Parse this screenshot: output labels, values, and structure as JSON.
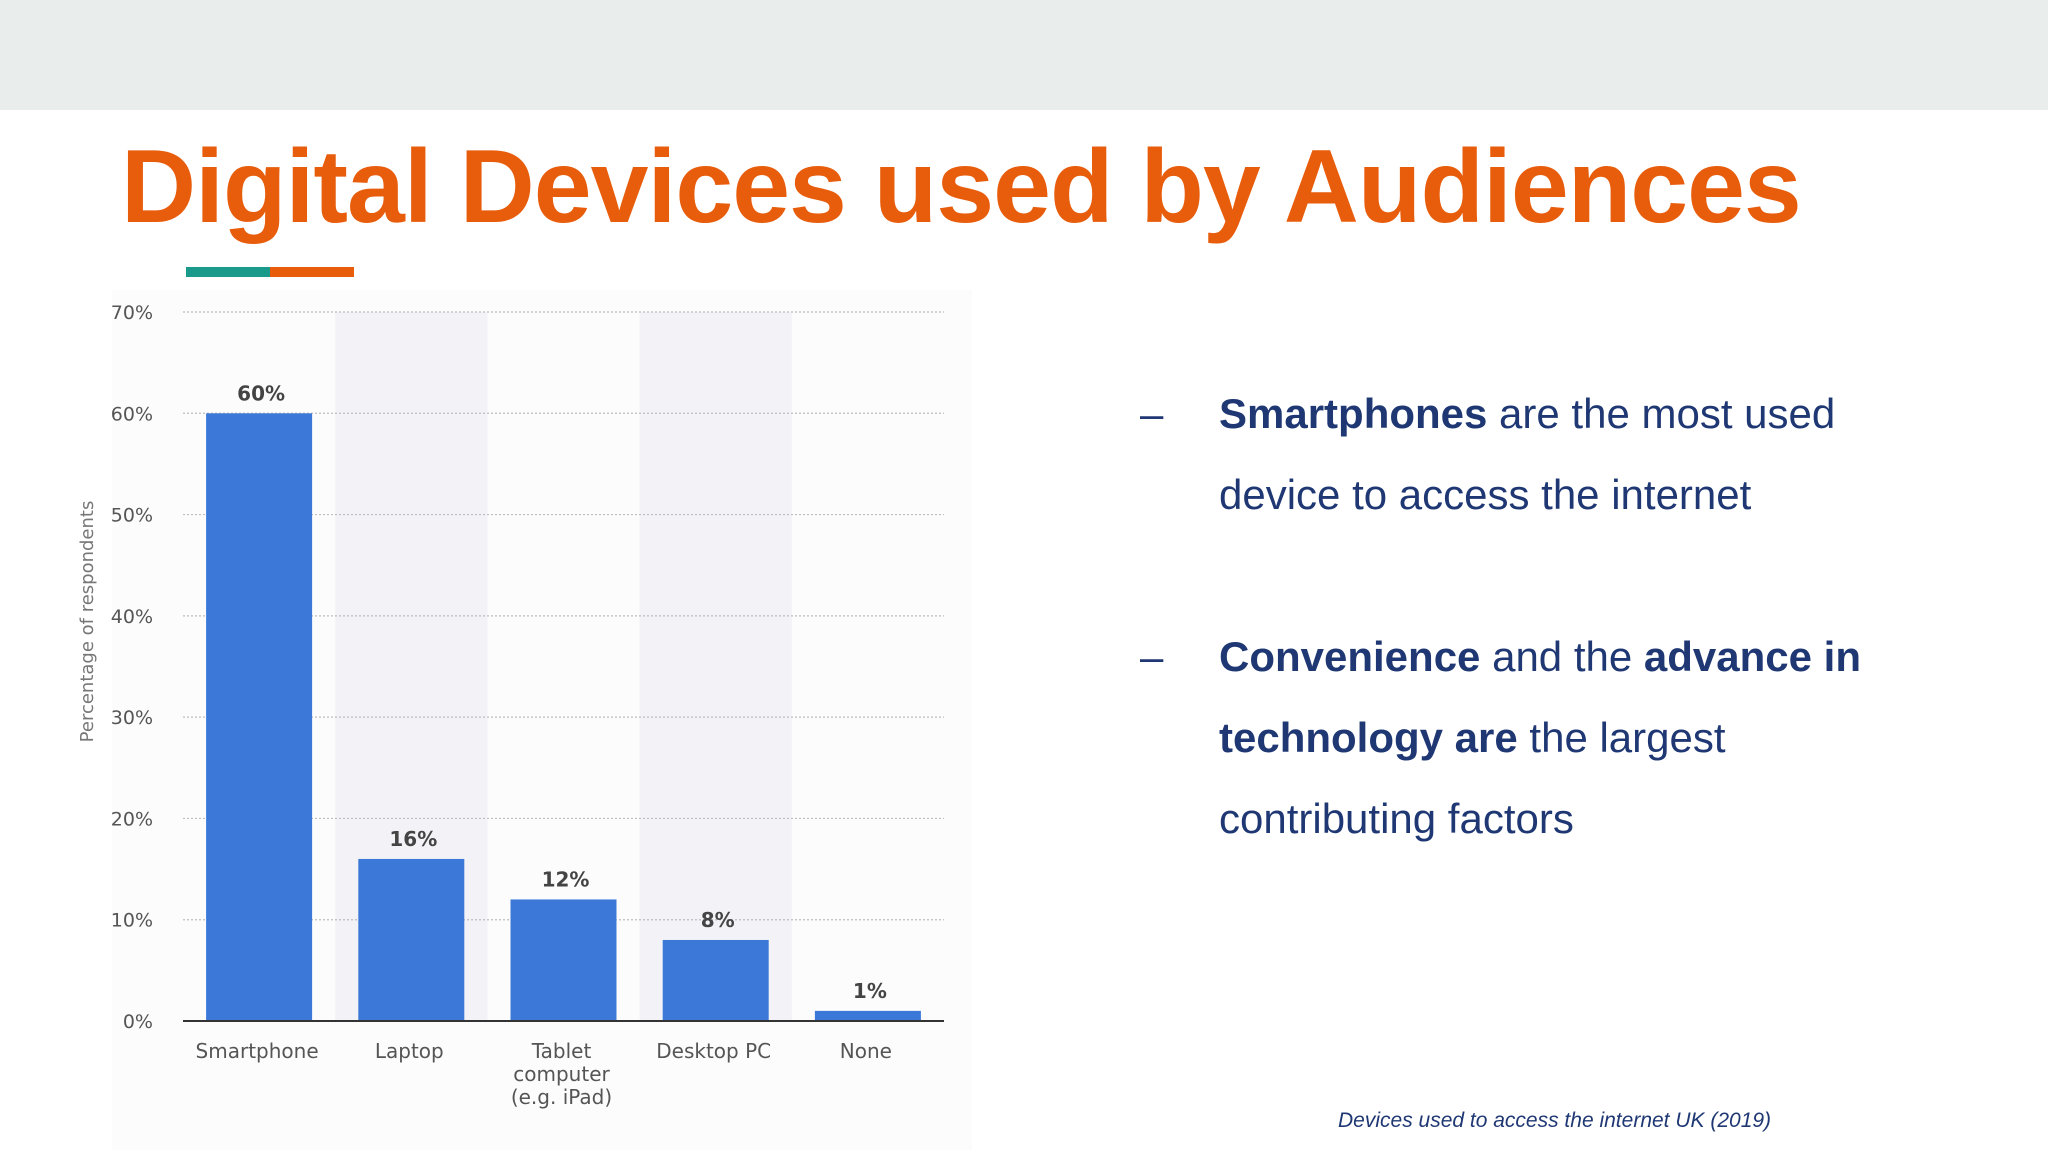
{
  "colors": {
    "title": "#e85d0c",
    "accent_teal": "#1a9a8a",
    "accent_orange": "#e85d0c",
    "bar": "#3c78d8",
    "text_navy": "#1f3874",
    "axis_text": "#555555",
    "grid": "#bdbdbd",
    "band": "#f3f3f7"
  },
  "slide": {
    "title": "Digital Devices used by Audiences",
    "caption": "Devices used to access the internet UK (2019)"
  },
  "bullets": [
    {
      "dash": "–",
      "parts": [
        {
          "text": "Smartphones",
          "bold": true
        },
        {
          "text": " are the most used device to access the internet",
          "bold": false
        }
      ]
    },
    {
      "dash": "–",
      "parts": [
        {
          "text": "Convenience",
          "bold": true
        },
        {
          "text": " and the ",
          "bold": false
        },
        {
          "text": "advance in technology are",
          "bold": true
        },
        {
          "text": " the largest contributing factors",
          "bold": false
        }
      ]
    }
  ],
  "chart_data": {
    "type": "bar",
    "categories": [
      "Smartphone",
      "Laptop",
      "Tablet computer (e.g. iPad)",
      "Desktop PC",
      "None"
    ],
    "category_lines": [
      [
        "Smartphone"
      ],
      [
        "Laptop"
      ],
      [
        "Tablet",
        "computer",
        "(e.g. iPad)"
      ],
      [
        "Desktop PC"
      ],
      [
        "None"
      ]
    ],
    "values": [
      60,
      16,
      12,
      8,
      1
    ],
    "data_labels": [
      "60%",
      "16%",
      "12%",
      "8%",
      "1%"
    ],
    "ylabel": "Percentage of respondents",
    "ylim": [
      0,
      70
    ],
    "yticks": [
      0,
      10,
      20,
      30,
      40,
      50,
      60,
      70
    ],
    "ytick_labels": [
      "0%",
      "10%",
      "20%",
      "30%",
      "40%",
      "50%",
      "60%",
      "70%"
    ],
    "grid": true,
    "legend": "none"
  }
}
